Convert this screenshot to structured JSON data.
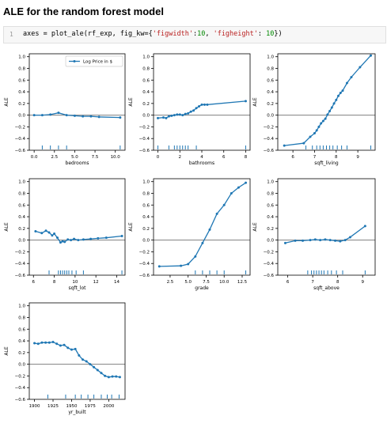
{
  "page": {
    "heading": "ALE for the random forest model"
  },
  "cell": {
    "line_number": "1",
    "code_prefix": "axes = plot_ale(rf_exp, fig_kw={",
    "key1": "'figwidth'",
    "sep1": ":",
    "val1": "10",
    "sep2": ", ",
    "key2": "'figheight'",
    "sep3": ": ",
    "val2": "10",
    "code_suffix": "})"
  },
  "colors": {
    "line": "#1f77b4",
    "zero_line": "#7f7f7f",
    "axes": "#000000"
  },
  "chart_data": [
    {
      "type": "line",
      "xlabel": "bedrooms",
      "ylabel": "ALE",
      "xlim": [
        -0.6,
        11.2
      ],
      "ylim": [
        -0.6,
        1.05
      ],
      "xticks": [
        0.0,
        2.5,
        5.0,
        7.5,
        10.0
      ],
      "xticklabels": [
        "0.0",
        "2.5",
        "5.0",
        "7.5",
        "10.0"
      ],
      "yticks": [
        -0.6,
        -0.4,
        -0.2,
        0.0,
        0.2,
        0.4,
        0.6,
        0.8,
        1.0
      ],
      "yticklabels": [
        "−0.6",
        "−0.4",
        "−0.2",
        "0.0",
        "0.2",
        "0.4",
        "0.6",
        "0.8",
        "1.0"
      ],
      "legend": {
        "label": "Log Price in $",
        "loc": "upper right"
      },
      "series": [
        {
          "name": "Log Price in $",
          "x": [
            0,
            1,
            2,
            3,
            4,
            5,
            6,
            7,
            8,
            10.6
          ],
          "y": [
            0.0,
            0.0,
            0.01,
            0.04,
            0.0,
            -0.01,
            -0.02,
            -0.02,
            -0.03,
            -0.04
          ]
        }
      ],
      "deciles": [
        1,
        2,
        3,
        4,
        10.6
      ]
    },
    {
      "type": "line",
      "xlabel": "bathrooms",
      "ylabel": "ALE",
      "xlim": [
        -0.4,
        8.4
      ],
      "ylim": [
        -0.6,
        1.05
      ],
      "xticks": [
        0,
        2,
        4,
        6,
        8
      ],
      "xticklabels": [
        "0",
        "2",
        "4",
        "6",
        "8"
      ],
      "yticks": [
        -0.6,
        -0.4,
        -0.2,
        0.0,
        0.2,
        0.4,
        0.6,
        0.8,
        1.0
      ],
      "yticklabels": [
        "−0.6",
        "−0.4",
        "−0.2",
        "0.0",
        "0.2",
        "0.4",
        "0.6",
        "0.8",
        "1.0"
      ],
      "series": [
        {
          "x": [
            0,
            0.5,
            0.75,
            1,
            1.25,
            1.5,
            1.75,
            2,
            2.25,
            2.5,
            2.75,
            3,
            3.25,
            3.5,
            3.75,
            4,
            4.25,
            4.5,
            8
          ],
          "y": [
            -0.05,
            -0.04,
            -0.05,
            -0.02,
            -0.01,
            0.0,
            0.01,
            0.01,
            0.0,
            0.02,
            0.03,
            0.06,
            0.08,
            0.12,
            0.15,
            0.18,
            0.18,
            0.18,
            0.24
          ]
        }
      ],
      "deciles": [
        0,
        1,
        1.5,
        1.75,
        2,
        2.25,
        2.5,
        2.75,
        3.5,
        8
      ]
    },
    {
      "type": "line",
      "xlabel": "sqft_living",
      "ylabel": "ALE",
      "xlim": [
        5.3,
        9.8
      ],
      "ylim": [
        -0.6,
        1.05
      ],
      "xticks": [
        6,
        7,
        8,
        9
      ],
      "xticklabels": [
        "6",
        "7",
        "8",
        "9"
      ],
      "yticks": [
        -0.6,
        -0.4,
        -0.2,
        0.0,
        0.2,
        0.4,
        0.6,
        0.8,
        1.0
      ],
      "yticklabels": [
        "−0.6",
        "−0.4",
        "−0.2",
        "0.0",
        "0.2",
        "0.4",
        "0.6",
        "0.8",
        "1.0"
      ],
      "series": [
        {
          "x": [
            5.6,
            6.5,
            6.8,
            7.0,
            7.1,
            7.2,
            7.3,
            7.4,
            7.5,
            7.6,
            7.7,
            7.8,
            7.9,
            8.0,
            8.1,
            8.2,
            8.3,
            8.5,
            8.7,
            9.1,
            9.6
          ],
          "y": [
            -0.52,
            -0.48,
            -0.37,
            -0.31,
            -0.26,
            -0.2,
            -0.14,
            -0.1,
            -0.06,
            0.01,
            0.07,
            0.13,
            0.2,
            0.26,
            0.33,
            0.38,
            0.42,
            0.55,
            0.65,
            0.82,
            1.02
          ]
        }
      ],
      "deciles": [
        6.6,
        6.9,
        7.1,
        7.25,
        7.4,
        7.55,
        7.7,
        7.85,
        8.05,
        8.25,
        8.5,
        9.6
      ]
    },
    {
      "type": "line",
      "xlabel": "sqft_lot",
      "ylabel": "ALE",
      "xlim": [
        5.6,
        14.8
      ],
      "ylim": [
        -0.6,
        1.05
      ],
      "xticks": [
        6,
        8,
        10,
        12,
        14
      ],
      "xticklabels": [
        "6",
        "8",
        "10",
        "12",
        "14"
      ],
      "yticks": [
        -0.6,
        -0.4,
        -0.2,
        0.0,
        0.2,
        0.4,
        0.6,
        0.8,
        1.0
      ],
      "yticklabels": [
        "−0.6",
        "−0.4",
        "−0.2",
        "0.0",
        "0.2",
        "0.4",
        "0.6",
        "0.8",
        "1.0"
      ],
      "series": [
        {
          "x": [
            6.2,
            6.8,
            7.2,
            7.5,
            7.8,
            8.0,
            8.3,
            8.6,
            8.8,
            9.0,
            9.3,
            9.6,
            9.9,
            10.3,
            10.8,
            11.5,
            12.2,
            13.0,
            14.5
          ],
          "y": [
            0.15,
            0.12,
            0.16,
            0.13,
            0.08,
            0.11,
            0.04,
            -0.04,
            -0.02,
            -0.03,
            0.01,
            0.0,
            0.02,
            0.0,
            0.01,
            0.02,
            0.03,
            0.04,
            0.07
          ]
        }
      ],
      "deciles": [
        7.5,
        8.4,
        8.6,
        8.8,
        9.0,
        9.2,
        9.4,
        9.7,
        10.1,
        10.8,
        14.5
      ]
    },
    {
      "type": "line",
      "xlabel": "grade",
      "ylabel": "ALE",
      "xlim": [
        0.2,
        13.6
      ],
      "ylim": [
        -0.6,
        1.05
      ],
      "xticks": [
        2.5,
        5.0,
        7.5,
        10.0,
        12.5
      ],
      "xticklabels": [
        "2.5",
        "5.0",
        "7.5",
        "10.0",
        "12.5"
      ],
      "yticks": [
        -0.6,
        -0.4,
        -0.2,
        0.0,
        0.2,
        0.4,
        0.6,
        0.8,
        1.0
      ],
      "yticklabels": [
        "−0.6",
        "−0.4",
        "−0.2",
        "0.0",
        "0.2",
        "0.4",
        "0.6",
        "0.8",
        "1.0"
      ],
      "series": [
        {
          "x": [
            1,
            4,
            5,
            6,
            7,
            8,
            9,
            10,
            11,
            12,
            13
          ],
          "y": [
            -0.45,
            -0.44,
            -0.41,
            -0.28,
            -0.05,
            0.18,
            0.45,
            0.6,
            0.8,
            0.9,
            0.98
          ]
        }
      ],
      "deciles": [
        6,
        7,
        8,
        9,
        10,
        13
      ]
    },
    {
      "type": "line",
      "xlabel": "sqft_above",
      "ylabel": "ALE",
      "xlim": [
        5.6,
        9.5
      ],
      "ylim": [
        -0.6,
        1.05
      ],
      "xticks": [
        6,
        7,
        8,
        9
      ],
      "xticklabels": [
        "6",
        "7",
        "8",
        "9"
      ],
      "yticks": [
        -0.6,
        -0.4,
        -0.2,
        0.0,
        0.2,
        0.4,
        0.6,
        0.8,
        1.0
      ],
      "yticklabels": [
        "−0.6",
        "−0.4",
        "−0.2",
        "0.0",
        "0.2",
        "0.4",
        "0.6",
        "0.8",
        "1.0"
      ],
      "series": [
        {
          "x": [
            5.9,
            6.3,
            6.6,
            6.9,
            7.1,
            7.3,
            7.5,
            7.7,
            7.9,
            8.1,
            8.3,
            8.5,
            9.1
          ],
          "y": [
            -0.05,
            -0.01,
            -0.01,
            0.0,
            0.01,
            0.0,
            0.01,
            0.0,
            -0.01,
            -0.02,
            0.0,
            0.05,
            0.24
          ]
        }
      ],
      "deciles": [
        6.8,
        6.95,
        7.05,
        7.15,
        7.25,
        7.35,
        7.45,
        7.6,
        7.75,
        7.95,
        8.2,
        9.1
      ]
    },
    {
      "type": "line",
      "xlabel": "yr_built",
      "ylabel": "ALE",
      "xlim": [
        1893,
        2022
      ],
      "ylim": [
        -0.6,
        1.05
      ],
      "xticks": [
        1900,
        1925,
        1950,
        1975,
        2000
      ],
      "xticklabels": [
        "1900",
        "1925",
        "1950",
        "1975",
        "2000"
      ],
      "yticks": [
        -0.6,
        -0.4,
        -0.2,
        0.0,
        0.2,
        0.4,
        0.6,
        0.8,
        1.0
      ],
      "yticklabels": [
        "−0.6",
        "−0.4",
        "−0.2",
        "0.0",
        "0.2",
        "0.4",
        "0.6",
        "0.8",
        "1.0"
      ],
      "series": [
        {
          "x": [
            1900,
            1905,
            1910,
            1915,
            1920,
            1925,
            1930,
            1935,
            1940,
            1945,
            1950,
            1955,
            1960,
            1965,
            1970,
            1975,
            1980,
            1985,
            1990,
            1995,
            2000,
            2005,
            2010,
            2015
          ],
          "y": [
            0.36,
            0.35,
            0.37,
            0.37,
            0.37,
            0.38,
            0.35,
            0.32,
            0.33,
            0.28,
            0.25,
            0.26,
            0.15,
            0.08,
            0.05,
            0.0,
            -0.05,
            -0.1,
            -0.15,
            -0.2,
            -0.22,
            -0.21,
            -0.21,
            -0.22
          ]
        }
      ],
      "deciles": [
        1918,
        1942,
        1955,
        1963,
        1972,
        1980,
        1990,
        1998,
        2004,
        2014
      ]
    }
  ]
}
